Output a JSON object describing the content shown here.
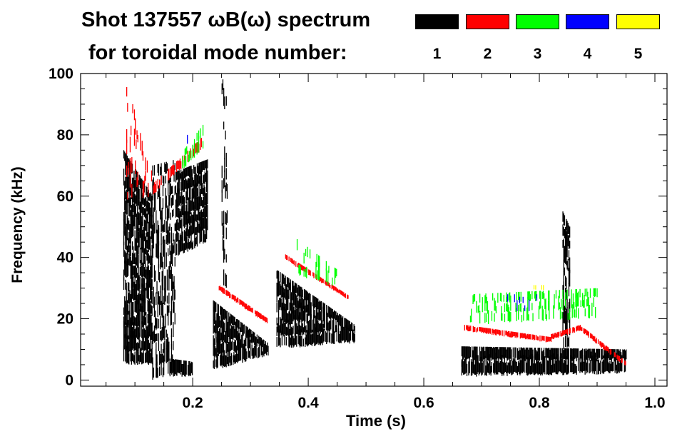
{
  "chart_data": {
    "type": "heatmap",
    "title": "Shot 137557 ωB(ω) spectrum",
    "subtitle": "for toroidal mode number:",
    "xlabel": "Time (s)",
    "ylabel": "Frequency (kHz)",
    "xlim": [
      0.006,
      1.021
    ],
    "ylim": [
      -2,
      100
    ],
    "xticks": [
      "0.2",
      "0.4",
      "0.6",
      "0.8",
      "1.0"
    ],
    "xtick_values": [
      0.2,
      0.4,
      0.6,
      0.8,
      1.0
    ],
    "yticks": [
      "0",
      "20",
      "40",
      "60",
      "80",
      "100"
    ],
    "ytick_values": [
      0,
      20,
      40,
      60,
      80,
      100
    ],
    "legend": [
      {
        "label": "1",
        "color": "#000000"
      },
      {
        "label": "2",
        "color": "#ff0000"
      },
      {
        "label": "3",
        "color": "#00ff00"
      },
      {
        "label": "4",
        "color": "#0000ff"
      },
      {
        "label": "5",
        "color": "#ffff00"
      }
    ],
    "regions": [
      {
        "mode": 1,
        "t": [
          0.08,
          0.13
        ],
        "flo": [
          5,
          5
        ],
        "fhi": [
          75,
          60
        ],
        "density": 0.85
      },
      {
        "mode": 1,
        "t": [
          0.13,
          0.17
        ],
        "flo": [
          0,
          2
        ],
        "fhi": [
          70,
          72
        ],
        "density": 0.45
      },
      {
        "mode": 1,
        "t": [
          0.17,
          0.225
        ],
        "flo": [
          40,
          45
        ],
        "fhi": [
          68,
          72
        ],
        "density": 0.9
      },
      {
        "mode": 1,
        "t": [
          0.16,
          0.2
        ],
        "flo": [
          1,
          1
        ],
        "fhi": [
          7,
          6
        ],
        "density": 0.8
      },
      {
        "mode": 1,
        "t": [
          0.235,
          0.33
        ],
        "flo": [
          3,
          8
        ],
        "fhi": [
          26,
          12
        ],
        "density": 0.9
      },
      {
        "mode": 1,
        "t": [
          0.345,
          0.48
        ],
        "flo": [
          10,
          12
        ],
        "fhi": [
          36,
          18
        ],
        "density": 0.9
      },
      {
        "mode": 1,
        "t": [
          0.665,
          0.95
        ],
        "flo": [
          1,
          2
        ],
        "fhi": [
          11,
          10
        ],
        "density": 0.9
      },
      {
        "mode": 1,
        "t": [
          0.84,
          0.852
        ],
        "flo": [
          10,
          10
        ],
        "fhi": [
          55,
          50
        ],
        "density": 0.6
      },
      {
        "mode": 1,
        "t": [
          0.25,
          0.26
        ],
        "flo": [
          30,
          30
        ],
        "fhi": [
          100,
          90
        ],
        "density": 0.25
      },
      {
        "mode": 2,
        "t": [
          0.085,
          0.13
        ],
        "flo": [
          58,
          60
        ],
        "fhi": [
          96,
          70
        ],
        "density": 0.25
      },
      {
        "mode": 2,
        "t": [
          0.13,
          0.22
        ],
        "flo": [
          60,
          76
        ],
        "fhi": [
          64,
          80
        ],
        "density": 0.6
      },
      {
        "mode": 2,
        "t": [
          0.245,
          0.33
        ],
        "flo": [
          29,
          18
        ],
        "fhi": [
          31,
          20
        ],
        "density": 0.85
      },
      {
        "mode": 2,
        "t": [
          0.36,
          0.47
        ],
        "flo": [
          39,
          26
        ],
        "fhi": [
          41,
          27.5
        ],
        "density": 0.85
      },
      {
        "mode": 2,
        "t": [
          0.67,
          0.82
        ],
        "flo": [
          16,
          12
        ],
        "fhi": [
          18,
          14
        ],
        "density": 0.85
      },
      {
        "mode": 2,
        "t": [
          0.82,
          0.87
        ],
        "flo": [
          13,
          16
        ],
        "fhi": [
          15,
          18
        ],
        "density": 0.85
      },
      {
        "mode": 2,
        "t": [
          0.87,
          0.95
        ],
        "flo": [
          16,
          4
        ],
        "fhi": [
          18,
          6
        ],
        "density": 0.85
      },
      {
        "mode": 3,
        "t": [
          0.18,
          0.22
        ],
        "flo": [
          68,
          76
        ],
        "fhi": [
          74,
          84
        ],
        "density": 0.3
      },
      {
        "mode": 3,
        "t": [
          0.38,
          0.45
        ],
        "flo": [
          34,
          30
        ],
        "fhi": [
          46,
          36
        ],
        "density": 0.25
      },
      {
        "mode": 3,
        "t": [
          0.68,
          0.9
        ],
        "flo": [
          18,
          20
        ],
        "fhi": [
          28,
          30
        ],
        "density": 0.3
      },
      {
        "mode": 4,
        "t": [
          0.74,
          0.8
        ],
        "flo": [
          22,
          22
        ],
        "fhi": [
          28,
          28
        ],
        "density": 0.08
      },
      {
        "mode": 4,
        "t": [
          0.19,
          0.21
        ],
        "flo": [
          76,
          76
        ],
        "fhi": [
          80,
          80
        ],
        "density": 0.1
      },
      {
        "mode": 5,
        "t": [
          0.79,
          0.81
        ],
        "flo": [
          29,
          29
        ],
        "fhi": [
          31,
          31
        ],
        "density": 0.05
      }
    ]
  }
}
